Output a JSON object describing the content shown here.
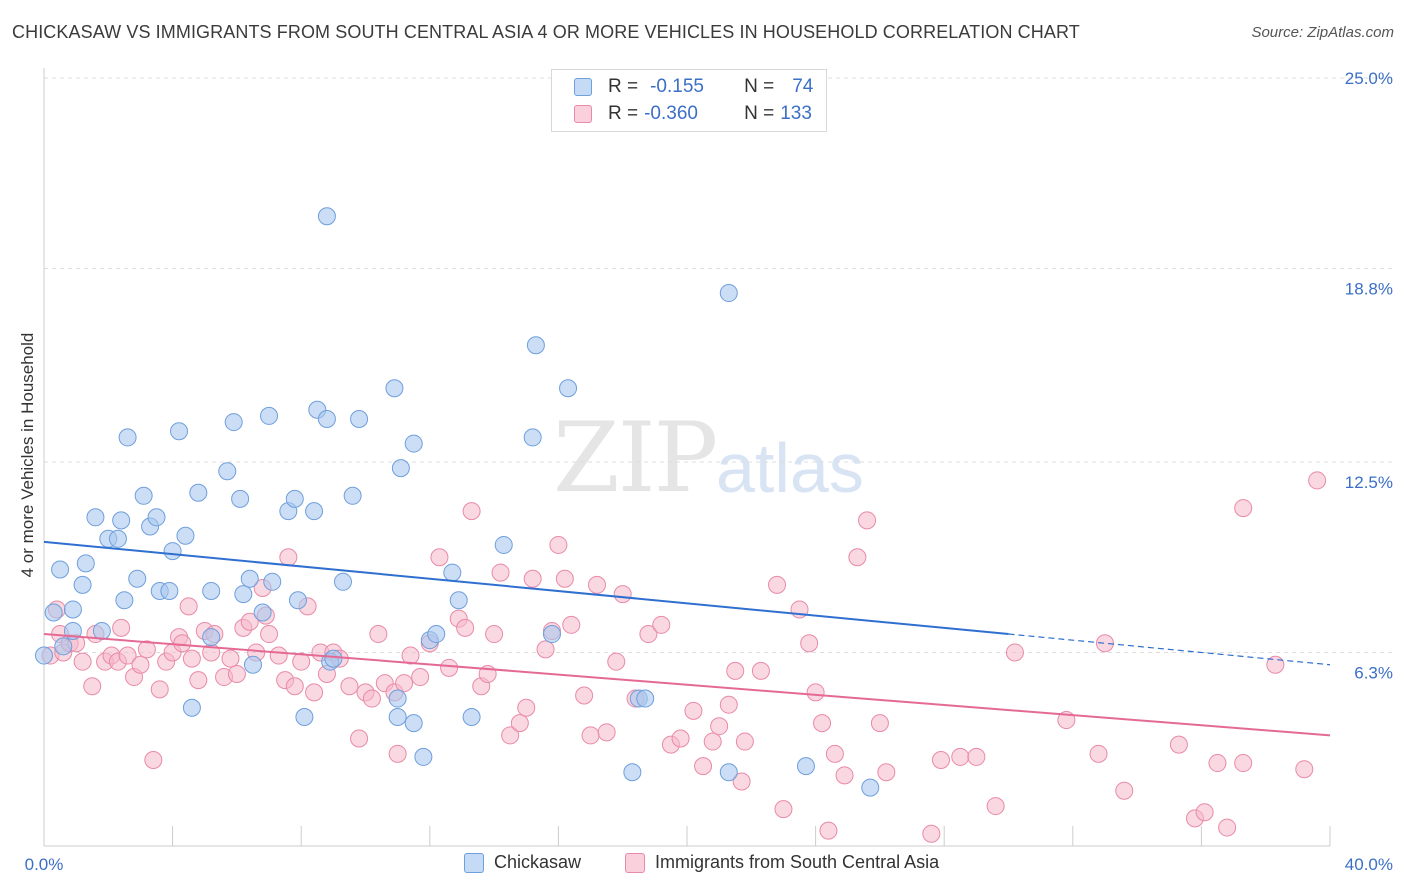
{
  "title": "CHICKASAW VS IMMIGRANTS FROM SOUTH CENTRAL ASIA 4 OR MORE VEHICLES IN HOUSEHOLD CORRELATION CHART",
  "source": "Source: ZipAtlas.com",
  "watermark": {
    "zip": "ZIP",
    "atlas": "atlas"
  },
  "legend": {
    "rows": [
      {
        "r_label": "R =",
        "r_value": "-0.155",
        "n_label": "N =",
        "n_value": "74"
      },
      {
        "r_label": "R =",
        "r_value": "-0.360",
        "n_label": "N =",
        "n_value": "133"
      }
    ]
  },
  "colors": {
    "blue_fill": "#a9c8ef",
    "blue_stroke": "#6f9fdc",
    "blue_line": "#2f6fd0",
    "pink_fill": "#f5b8cb",
    "pink_stroke": "#e98aa8",
    "pink_line": "#e46a95",
    "tick_label": "#3b6fc7",
    "grid": "#dddddd"
  },
  "chart_data": {
    "type": "scatter",
    "title": "CHICKASAW VS IMMIGRANTS FROM SOUTH CENTRAL ASIA 4 OR MORE VEHICLES IN HOUSEHOLD CORRELATION CHART",
    "xlabel": "",
    "ylabel": "4 or more Vehicles in Household",
    "xlim": [
      0,
      40
    ],
    "ylim": [
      0,
      25
    ],
    "x_tick_labels": [
      "0.0%",
      "40.0%"
    ],
    "y_ticks": [
      6.3,
      12.5,
      18.8,
      25.0
    ],
    "y_tick_labels": [
      "6.3%",
      "12.5%",
      "18.8%",
      "25.0%"
    ],
    "grid": true,
    "legend_position": "bottom",
    "series": [
      {
        "name": "Chickasaw",
        "color": "#a9c8ef",
        "trend": {
          "x": [
            0,
            30
          ],
          "y": [
            9.9,
            6.9
          ],
          "dashed_to": [
            40,
            5.9
          ]
        },
        "points": [
          [
            0.0,
            6.2
          ],
          [
            0.3,
            7.6
          ],
          [
            0.5,
            9.0
          ],
          [
            0.6,
            6.5
          ],
          [
            0.9,
            7.7
          ],
          [
            0.9,
            7.0
          ],
          [
            1.2,
            8.5
          ],
          [
            1.3,
            9.2
          ],
          [
            1.6,
            10.7
          ],
          [
            1.8,
            7.0
          ],
          [
            2.0,
            10.0
          ],
          [
            2.3,
            10.0
          ],
          [
            2.4,
            10.6
          ],
          [
            2.5,
            8.0
          ],
          [
            2.6,
            13.3
          ],
          [
            2.9,
            8.7
          ],
          [
            3.1,
            11.4
          ],
          [
            3.3,
            10.4
          ],
          [
            3.5,
            10.7
          ],
          [
            3.6,
            8.3
          ],
          [
            3.9,
            8.3
          ],
          [
            4.0,
            9.6
          ],
          [
            4.2,
            13.5
          ],
          [
            4.4,
            10.1
          ],
          [
            4.6,
            4.5
          ],
          [
            4.8,
            11.5
          ],
          [
            5.2,
            8.3
          ],
          [
            5.2,
            6.8
          ],
          [
            5.7,
            12.2
          ],
          [
            5.9,
            13.8
          ],
          [
            6.1,
            11.3
          ],
          [
            6.2,
            8.2
          ],
          [
            6.4,
            8.7
          ],
          [
            6.5,
            5.9
          ],
          [
            6.8,
            7.6
          ],
          [
            7.0,
            14.0
          ],
          [
            7.1,
            8.6
          ],
          [
            7.6,
            10.9
          ],
          [
            7.8,
            11.3
          ],
          [
            7.9,
            8.0
          ],
          [
            8.1,
            4.2
          ],
          [
            8.4,
            10.9
          ],
          [
            8.5,
            14.2
          ],
          [
            8.8,
            20.5
          ],
          [
            8.8,
            13.9
          ],
          [
            8.9,
            6.0
          ],
          [
            9.0,
            6.1
          ],
          [
            9.3,
            8.6
          ],
          [
            9.6,
            11.4
          ],
          [
            9.8,
            13.9
          ],
          [
            10.9,
            14.9
          ],
          [
            11.1,
            12.3
          ],
          [
            11.0,
            4.8
          ],
          [
            11.0,
            4.2
          ],
          [
            11.5,
            4.0
          ],
          [
            11.5,
            13.1
          ],
          [
            11.8,
            2.9
          ],
          [
            12.0,
            6.7
          ],
          [
            12.2,
            6.9
          ],
          [
            12.7,
            8.9
          ],
          [
            12.9,
            8.0
          ],
          [
            13.3,
            4.2
          ],
          [
            14.3,
            9.8
          ],
          [
            15.2,
            13.3
          ],
          [
            15.3,
            16.3
          ],
          [
            15.8,
            6.9
          ],
          [
            16.3,
            14.9
          ],
          [
            18.3,
            2.4
          ],
          [
            18.5,
            4.8
          ],
          [
            18.7,
            4.8
          ],
          [
            21.3,
            2.4
          ],
          [
            21.3,
            18.0
          ],
          [
            23.7,
            2.6
          ],
          [
            25.7,
            1.9
          ]
        ]
      },
      {
        "name": "Immigrants from South Central Asia",
        "color": "#f5b8cb",
        "trend": {
          "x": [
            0,
            40
          ],
          "y": [
            6.9,
            3.6
          ]
        },
        "points": [
          [
            0.2,
            6.2
          ],
          [
            0.4,
            7.7
          ],
          [
            0.5,
            6.9
          ],
          [
            0.6,
            6.3
          ],
          [
            0.8,
            6.6
          ],
          [
            1.0,
            6.6
          ],
          [
            1.2,
            6.0
          ],
          [
            1.5,
            5.2
          ],
          [
            1.6,
            6.9
          ],
          [
            1.9,
            6.0
          ],
          [
            2.1,
            6.2
          ],
          [
            2.3,
            6.0
          ],
          [
            2.4,
            7.1
          ],
          [
            2.6,
            6.2
          ],
          [
            2.8,
            5.5
          ],
          [
            3.0,
            5.9
          ],
          [
            3.2,
            6.4
          ],
          [
            3.4,
            2.8
          ],
          [
            3.6,
            5.1
          ],
          [
            3.8,
            6.0
          ],
          [
            4.0,
            6.3
          ],
          [
            4.2,
            6.8
          ],
          [
            4.3,
            6.6
          ],
          [
            4.5,
            7.8
          ],
          [
            4.6,
            6.1
          ],
          [
            4.8,
            5.4
          ],
          [
            5.0,
            7.0
          ],
          [
            5.2,
            6.3
          ],
          [
            5.3,
            6.9
          ],
          [
            5.6,
            5.5
          ],
          [
            5.8,
            6.1
          ],
          [
            6.0,
            5.6
          ],
          [
            6.2,
            7.1
          ],
          [
            6.4,
            7.3
          ],
          [
            6.6,
            6.3
          ],
          [
            6.8,
            8.4
          ],
          [
            6.9,
            7.5
          ],
          [
            7.0,
            6.9
          ],
          [
            7.3,
            6.2
          ],
          [
            7.5,
            5.4
          ],
          [
            7.6,
            9.4
          ],
          [
            7.8,
            5.2
          ],
          [
            8.0,
            6.0
          ],
          [
            8.2,
            7.8
          ],
          [
            8.4,
            5.0
          ],
          [
            8.6,
            6.3
          ],
          [
            8.8,
            5.6
          ],
          [
            9.0,
            6.3
          ],
          [
            9.2,
            6.1
          ],
          [
            9.5,
            5.2
          ],
          [
            9.8,
            3.5
          ],
          [
            10.0,
            5.0
          ],
          [
            10.2,
            4.8
          ],
          [
            10.4,
            6.9
          ],
          [
            10.6,
            5.3
          ],
          [
            10.9,
            5.0
          ],
          [
            11.0,
            3.0
          ],
          [
            11.2,
            5.3
          ],
          [
            11.4,
            6.2
          ],
          [
            11.7,
            5.5
          ],
          [
            12.0,
            6.6
          ],
          [
            12.3,
            9.4
          ],
          [
            12.6,
            5.8
          ],
          [
            12.9,
            7.4
          ],
          [
            13.1,
            7.1
          ],
          [
            13.3,
            10.9
          ],
          [
            13.6,
            5.2
          ],
          [
            13.8,
            5.6
          ],
          [
            14.0,
            6.9
          ],
          [
            14.2,
            8.9
          ],
          [
            14.5,
            3.6
          ],
          [
            14.8,
            4.0
          ],
          [
            15.0,
            4.5
          ],
          [
            15.2,
            8.7
          ],
          [
            15.6,
            6.4
          ],
          [
            15.8,
            7.0
          ],
          [
            16.0,
            9.8
          ],
          [
            16.2,
            8.7
          ],
          [
            16.4,
            7.2
          ],
          [
            16.8,
            4.9
          ],
          [
            17.0,
            3.6
          ],
          [
            17.2,
            8.5
          ],
          [
            17.5,
            3.7
          ],
          [
            17.8,
            6.0
          ],
          [
            18.0,
            8.2
          ],
          [
            18.4,
            4.8
          ],
          [
            18.8,
            6.9
          ],
          [
            19.2,
            7.2
          ],
          [
            19.5,
            3.3
          ],
          [
            19.8,
            3.5
          ],
          [
            20.2,
            4.4
          ],
          [
            20.5,
            2.6
          ],
          [
            20.8,
            3.4
          ],
          [
            21.0,
            3.9
          ],
          [
            21.3,
            4.6
          ],
          [
            21.5,
            5.7
          ],
          [
            21.7,
            2.1
          ],
          [
            21.8,
            3.4
          ],
          [
            22.3,
            5.7
          ],
          [
            22.8,
            8.5
          ],
          [
            23.0,
            1.2
          ],
          [
            23.5,
            7.7
          ],
          [
            23.8,
            6.6
          ],
          [
            24.0,
            5.0
          ],
          [
            24.2,
            4.0
          ],
          [
            24.4,
            0.5
          ],
          [
            24.6,
            3.0
          ],
          [
            24.9,
            2.3
          ],
          [
            25.3,
            9.4
          ],
          [
            25.6,
            10.6
          ],
          [
            26.0,
            4.0
          ],
          [
            26.2,
            2.4
          ],
          [
            27.6,
            0.4
          ],
          [
            27.9,
            2.8
          ],
          [
            28.5,
            2.9
          ],
          [
            29.0,
            2.9
          ],
          [
            29.6,
            1.3
          ],
          [
            30.2,
            6.3
          ],
          [
            31.8,
            4.1
          ],
          [
            32.8,
            3.0
          ],
          [
            33.0,
            6.6
          ],
          [
            33.6,
            1.8
          ],
          [
            35.3,
            3.3
          ],
          [
            35.8,
            0.9
          ],
          [
            36.1,
            1.1
          ],
          [
            36.5,
            2.7
          ],
          [
            36.8,
            0.6
          ],
          [
            37.3,
            11.0
          ],
          [
            37.3,
            2.7
          ],
          [
            38.3,
            5.9
          ],
          [
            39.2,
            2.5
          ],
          [
            39.6,
            11.9
          ]
        ]
      }
    ]
  }
}
